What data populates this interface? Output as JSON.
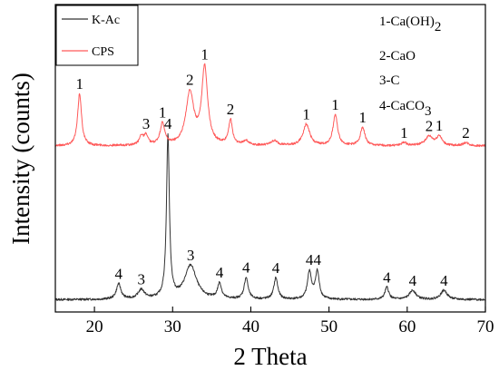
{
  "chart_data": {
    "type": "line",
    "title": "",
    "xlabel": "2 Theta",
    "ylabel": "Intensity (counts)",
    "xlim": [
      15,
      70
    ],
    "ylim": [
      0,
      100
    ],
    "y_tick_labels_shown": false,
    "grid": false,
    "x_ticks": [
      20,
      30,
      40,
      50,
      60,
      70
    ],
    "x_tick_labels": [
      "20",
      "30",
      "40",
      "50",
      "60",
      "70"
    ],
    "legend": {
      "placement": "top-left",
      "entries": [
        {
          "name": "K-Ac",
          "color": "#333333"
        },
        {
          "name": "CPS",
          "color": "#ff5a5a"
        }
      ]
    },
    "phase_key": [
      {
        "id": "1",
        "formula": "Ca(OH)",
        "subscript": "2"
      },
      {
        "id": "2",
        "formula": "CaO",
        "subscript": ""
      },
      {
        "id": "3",
        "formula": "C",
        "subscript": ""
      },
      {
        "id": "4",
        "formula": "CaCO",
        "subscript": "3"
      }
    ],
    "series": [
      {
        "name": "K-Ac",
        "color": "#333333",
        "baseline": 4,
        "peaks": [
          {
            "x": 23.1,
            "height": 5,
            "width": 0.35,
            "label": "4"
          },
          {
            "x": 26.0,
            "height": 3,
            "width": 0.5,
            "label": "3"
          },
          {
            "x": 29.4,
            "height": 53,
            "width": 0.22,
            "label": "4"
          },
          {
            "x": 32.3,
            "height": 11,
            "width": 0.9,
            "label": "3"
          },
          {
            "x": 36.0,
            "height": 5,
            "width": 0.3,
            "label": "4"
          },
          {
            "x": 39.4,
            "height": 7,
            "width": 0.3,
            "label": "4"
          },
          {
            "x": 43.2,
            "height": 7,
            "width": 0.3,
            "label": "4"
          },
          {
            "x": 47.5,
            "height": 9,
            "width": 0.3,
            "label": "4"
          },
          {
            "x": 48.5,
            "height": 9,
            "width": 0.3,
            "label": "4"
          },
          {
            "x": 57.4,
            "height": 4,
            "width": 0.3,
            "label": "4"
          },
          {
            "x": 60.7,
            "height": 3,
            "width": 0.5,
            "label": "4"
          },
          {
            "x": 64.7,
            "height": 3,
            "width": 0.5,
            "label": "4"
          }
        ]
      },
      {
        "name": "CPS",
        "color": "#ff5a5a",
        "baseline": 54,
        "peaks": [
          {
            "x": 18.1,
            "height": 17,
            "width": 0.3,
            "label": "1"
          },
          {
            "x": 26.0,
            "height": 3,
            "width": 0.3,
            "label": ""
          },
          {
            "x": 26.6,
            "height": 3,
            "width": 0.3,
            "label": "3"
          },
          {
            "x": 28.7,
            "height": 7,
            "width": 0.35,
            "label": "1"
          },
          {
            "x": 32.2,
            "height": 17,
            "width": 0.6,
            "label": "2"
          },
          {
            "x": 34.1,
            "height": 25,
            "width": 0.45,
            "label": "1"
          },
          {
            "x": 37.4,
            "height": 8,
            "width": 0.3,
            "label": "2"
          },
          {
            "x": 39.4,
            "height": 1.5,
            "width": 0.4,
            "label": ""
          },
          {
            "x": 43.0,
            "height": 1.5,
            "width": 0.5,
            "label": ""
          },
          {
            "x": 47.1,
            "height": 7,
            "width": 0.5,
            "label": "1"
          },
          {
            "x": 50.8,
            "height": 10,
            "width": 0.35,
            "label": "1"
          },
          {
            "x": 54.3,
            "height": 6,
            "width": 0.35,
            "label": "1"
          },
          {
            "x": 59.6,
            "height": 1,
            "width": 0.4,
            "label": "1"
          },
          {
            "x": 62.8,
            "height": 3,
            "width": 0.6,
            "label": "2"
          },
          {
            "x": 64.1,
            "height": 3,
            "width": 0.4,
            "label": "1"
          },
          {
            "x": 67.5,
            "height": 1,
            "width": 0.4,
            "label": "2"
          }
        ]
      }
    ]
  }
}
